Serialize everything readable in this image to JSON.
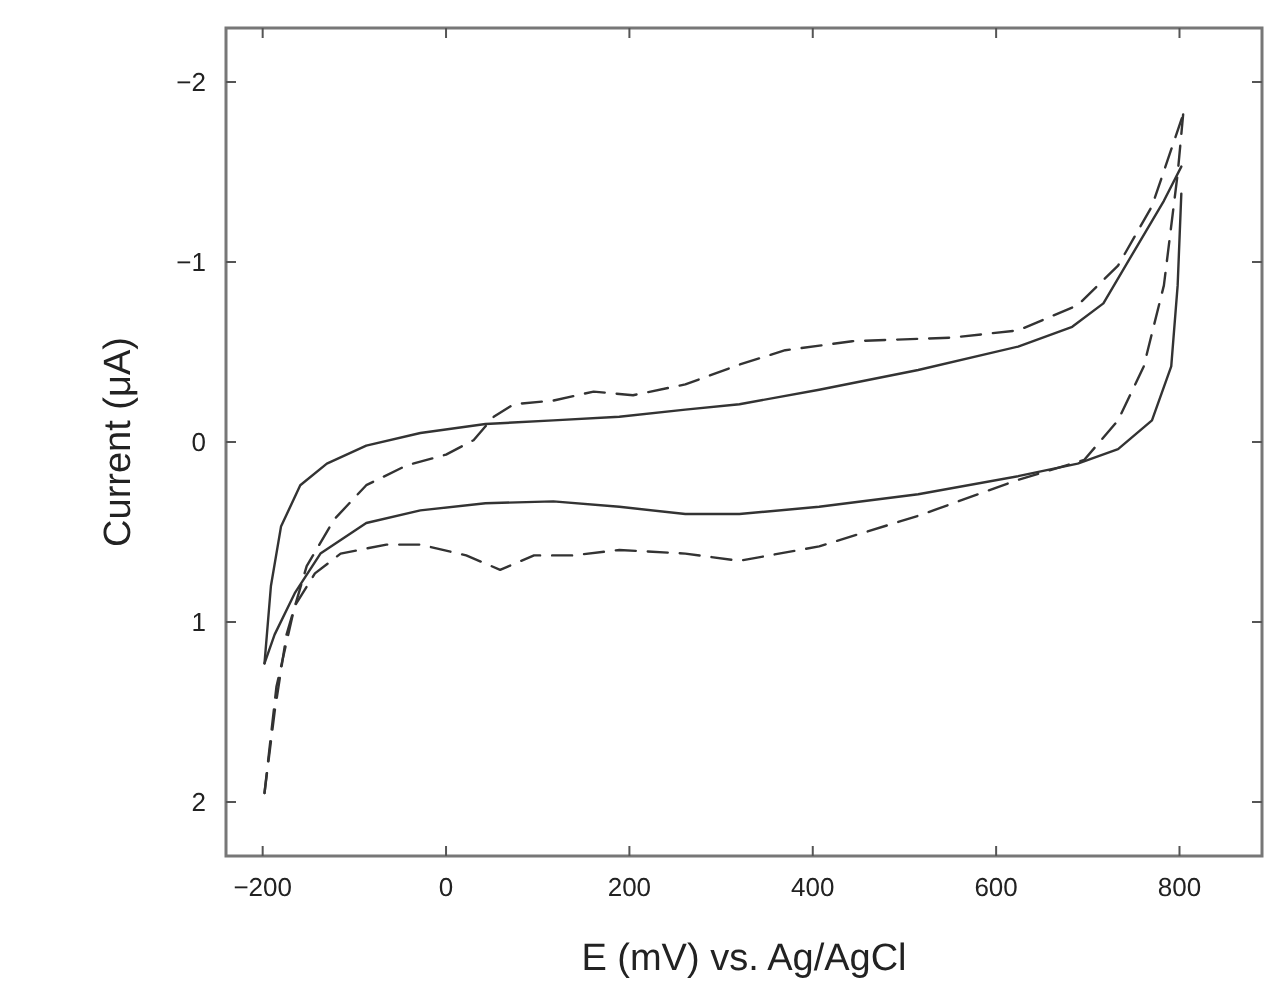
{
  "chart_data": {
    "type": "line",
    "xlabel": "E (mV) vs. Ag/AgCl",
    "ylabel": "Current (μA)",
    "xlim": [
      -240,
      890
    ],
    "ylim": [
      2.3,
      -2.3
    ],
    "xticks": [
      {
        "value": -200,
        "label": "−200"
      },
      0,
      200,
      400,
      600,
      800
    ],
    "yticks": [
      {
        "value": -2,
        "label": "−2"
      },
      {
        "value": -1,
        "label": "−1"
      },
      0,
      1,
      2
    ],
    "grid": false,
    "series": [
      {
        "color": "#333333",
        "line_style": "solid",
        "x": [
          -198,
          -191,
          -180,
          -159,
          -130,
          -87,
          -28,
          43,
          117,
          189,
          261,
          320,
          407,
          515,
          624,
          683,
          717,
          754,
          783,
          802
        ],
        "values": [
          1.23,
          0.8,
          0.47,
          0.24,
          0.12,
          0.02,
          -0.05,
          -0.1,
          -0.12,
          -0.14,
          -0.18,
          -0.21,
          -0.29,
          -0.4,
          -0.53,
          -0.64,
          -0.77,
          -1.09,
          -1.34,
          -1.53
        ]
      },
      {
        "color": "#333333",
        "line_style": "solid",
        "x": [
          -198,
          -187,
          -165,
          -137,
          -87,
          -28,
          43,
          117,
          189,
          261,
          320,
          407,
          515,
          624,
          689,
          733,
          770,
          791,
          798,
          802
        ],
        "values": [
          1.23,
          1.07,
          0.84,
          0.62,
          0.45,
          0.38,
          0.34,
          0.33,
          0.36,
          0.4,
          0.4,
          0.36,
          0.29,
          0.19,
          0.12,
          0.04,
          -0.12,
          -0.42,
          -0.87,
          -1.38
        ]
      },
      {
        "color": "#333333",
        "line_style": "dashed",
        "x": [
          -198,
          -187,
          -174,
          -152,
          -122,
          -87,
          -43,
          0,
          30,
          52,
          74,
          117,
          161,
          204,
          261,
          320,
          370,
          443,
          552,
          624,
          689,
          733,
          770,
          804
        ],
        "values": [
          1.95,
          1.5,
          1.07,
          0.69,
          0.43,
          0.24,
          0.13,
          0.07,
          -0.01,
          -0.14,
          -0.21,
          -0.23,
          -0.28,
          -0.26,
          -0.32,
          -0.43,
          -0.51,
          -0.56,
          -0.58,
          -0.62,
          -0.76,
          -0.98,
          -1.31,
          -1.82
        ]
      },
      {
        "color": "#333333",
        "line_style": "dashed",
        "x": [
          -198,
          -185,
          -165,
          -143,
          -115,
          -65,
          -28,
          22,
          59,
          96,
          139,
          189,
          261,
          320,
          407,
          515,
          624,
          696,
          733,
          761,
          783,
          798,
          804
        ],
        "values": [
          1.95,
          1.36,
          0.91,
          0.73,
          0.62,
          0.57,
          0.57,
          0.63,
          0.71,
          0.63,
          0.63,
          0.6,
          0.62,
          0.66,
          0.58,
          0.41,
          0.21,
          0.1,
          -0.12,
          -0.42,
          -0.87,
          -1.49,
          -1.82
        ]
      }
    ]
  }
}
